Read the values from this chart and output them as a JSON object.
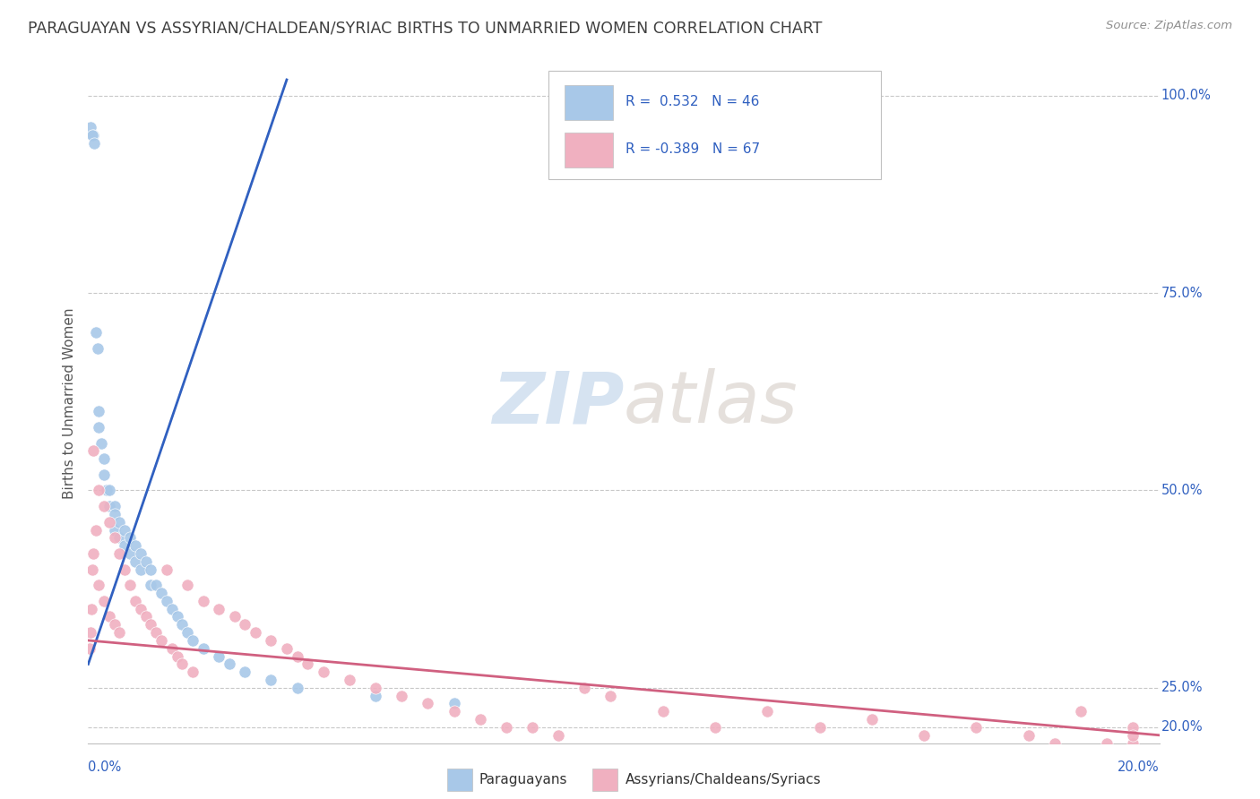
{
  "title": "PARAGUAYAN VS ASSYRIAN/CHALDEAN/SYRIAC BIRTHS TO UNMARRIED WOMEN CORRELATION CHART",
  "source": "Source: ZipAtlas.com",
  "ylabel": "Births to Unmarried Women",
  "r_blue": 0.532,
  "n_blue": 46,
  "r_pink": -0.389,
  "n_pink": 67,
  "blue_color": "#A8C8E8",
  "pink_color": "#F0B0C0",
  "blue_line_color": "#3060C0",
  "pink_line_color": "#D06080",
  "watermark_color": "#C5D8EC",
  "xmin": 0.0,
  "xmax": 0.205,
  "ymin": 0.18,
  "ymax": 1.04,
  "right_ticks": [
    [
      1.0,
      "100.0%"
    ],
    [
      0.75,
      "75.0%"
    ],
    [
      0.5,
      "50.0%"
    ],
    [
      0.25,
      "25.0%"
    ]
  ],
  "bottom_right_tick": [
    0.2,
    "20.0%"
  ],
  "seed_blue": 12,
  "seed_pink": 77,
  "blue_x_points": [
    0.0005,
    0.001,
    0.0008,
    0.0012,
    0.0015,
    0.0018,
    0.002,
    0.002,
    0.0025,
    0.003,
    0.003,
    0.0035,
    0.004,
    0.004,
    0.005,
    0.005,
    0.005,
    0.006,
    0.006,
    0.007,
    0.007,
    0.008,
    0.008,
    0.009,
    0.009,
    0.01,
    0.01,
    0.011,
    0.012,
    0.012,
    0.013,
    0.014,
    0.015,
    0.016,
    0.017,
    0.018,
    0.019,
    0.02,
    0.022,
    0.025,
    0.027,
    0.03,
    0.035,
    0.04,
    0.055,
    0.07
  ],
  "blue_y_points": [
    0.96,
    0.95,
    0.95,
    0.94,
    0.7,
    0.68,
    0.6,
    0.58,
    0.56,
    0.54,
    0.52,
    0.5,
    0.5,
    0.48,
    0.48,
    0.47,
    0.45,
    0.46,
    0.44,
    0.45,
    0.43,
    0.44,
    0.42,
    0.43,
    0.41,
    0.42,
    0.4,
    0.41,
    0.4,
    0.38,
    0.38,
    0.37,
    0.36,
    0.35,
    0.34,
    0.33,
    0.32,
    0.31,
    0.3,
    0.29,
    0.28,
    0.27,
    0.26,
    0.25,
    0.24,
    0.23
  ],
  "pink_x_points": [
    0.0002,
    0.0004,
    0.0006,
    0.0008,
    0.001,
    0.001,
    0.0015,
    0.002,
    0.002,
    0.003,
    0.003,
    0.004,
    0.004,
    0.005,
    0.005,
    0.006,
    0.006,
    0.007,
    0.008,
    0.009,
    0.01,
    0.011,
    0.012,
    0.013,
    0.014,
    0.015,
    0.016,
    0.017,
    0.018,
    0.019,
    0.02,
    0.022,
    0.025,
    0.028,
    0.03,
    0.032,
    0.035,
    0.038,
    0.04,
    0.042,
    0.045,
    0.05,
    0.055,
    0.06,
    0.065,
    0.07,
    0.075,
    0.08,
    0.085,
    0.09,
    0.095,
    0.1,
    0.11,
    0.12,
    0.13,
    0.14,
    0.15,
    0.16,
    0.17,
    0.18,
    0.185,
    0.19,
    0.195,
    0.2,
    0.2,
    0.2,
    0.2
  ],
  "pink_y_points": [
    0.3,
    0.32,
    0.35,
    0.4,
    0.42,
    0.55,
    0.45,
    0.5,
    0.38,
    0.48,
    0.36,
    0.46,
    0.34,
    0.44,
    0.33,
    0.42,
    0.32,
    0.4,
    0.38,
    0.36,
    0.35,
    0.34,
    0.33,
    0.32,
    0.31,
    0.4,
    0.3,
    0.29,
    0.28,
    0.38,
    0.27,
    0.36,
    0.35,
    0.34,
    0.33,
    0.32,
    0.31,
    0.3,
    0.29,
    0.28,
    0.27,
    0.26,
    0.25,
    0.24,
    0.23,
    0.22,
    0.21,
    0.2,
    0.2,
    0.19,
    0.25,
    0.24,
    0.22,
    0.2,
    0.22,
    0.2,
    0.21,
    0.19,
    0.2,
    0.19,
    0.18,
    0.22,
    0.18,
    0.2,
    0.18,
    0.19,
    0.17
  ]
}
